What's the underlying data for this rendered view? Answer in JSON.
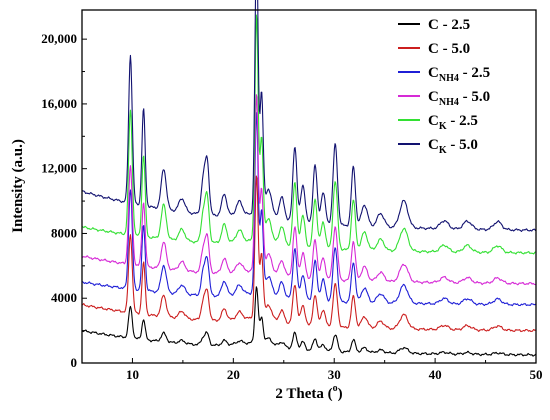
{
  "chart_data": {
    "type": "line",
    "title": "",
    "xlabel": "2 Theta (",
    "xlabel_degree": "o",
    "xlabel_close": ")",
    "ylabel": "Intensity (a.u.)",
    "xlim": [
      5,
      50
    ],
    "ylim": [
      0,
      21800
    ],
    "xticks": [
      10,
      20,
      30,
      40,
      50
    ],
    "yticks": [
      0,
      4000,
      8000,
      12000,
      16000,
      20000
    ],
    "ytick_labels": [
      "0",
      "4000",
      "8000",
      "12,000",
      "16,000",
      "20,000"
    ],
    "grid": false,
    "legend_position": "top-right",
    "peaks": [
      {
        "x": 9.8,
        "w": 0.18,
        "rel": 0.55
      },
      {
        "x": 11.1,
        "w": 0.16,
        "rel": 0.36
      },
      {
        "x": 13.1,
        "w": 0.25,
        "rel": 0.15
      },
      {
        "x": 14.9,
        "w": 0.3,
        "rel": 0.05
      },
      {
        "x": 17.0,
        "w": 0.2,
        "rel": 0.12
      },
      {
        "x": 17.4,
        "w": 0.2,
        "rel": 0.2
      },
      {
        "x": 19.1,
        "w": 0.25,
        "rel": 0.08
      },
      {
        "x": 20.6,
        "w": 0.3,
        "rel": 0.05
      },
      {
        "x": 22.3,
        "w": 0.16,
        "rel": 1.0
      },
      {
        "x": 22.8,
        "w": 0.16,
        "rel": 0.45
      },
      {
        "x": 23.5,
        "w": 0.3,
        "rel": 0.1
      },
      {
        "x": 24.8,
        "w": 0.25,
        "rel": 0.08
      },
      {
        "x": 26.1,
        "w": 0.2,
        "rel": 0.28
      },
      {
        "x": 26.9,
        "w": 0.22,
        "rel": 0.14
      },
      {
        "x": 28.1,
        "w": 0.2,
        "rel": 0.22
      },
      {
        "x": 28.9,
        "w": 0.22,
        "rel": 0.12
      },
      {
        "x": 30.1,
        "w": 0.22,
        "rel": 0.3
      },
      {
        "x": 31.9,
        "w": 0.2,
        "rel": 0.22
      },
      {
        "x": 33.0,
        "w": 0.3,
        "rel": 0.08
      },
      {
        "x": 34.6,
        "w": 0.35,
        "rel": 0.05
      },
      {
        "x": 36.9,
        "w": 0.4,
        "rel": 0.1
      },
      {
        "x": 40.9,
        "w": 0.4,
        "rel": 0.03
      },
      {
        "x": 43.2,
        "w": 0.4,
        "rel": 0.03
      },
      {
        "x": 46.2,
        "w": 0.4,
        "rel": 0.03
      }
    ],
    "series": [
      {
        "name": "C - 2.5",
        "name_main": "C",
        "name_sub": "",
        "name_tail": " - 2.5",
        "color": "#000000",
        "baseline": [
          2000,
          500
        ],
        "peak_height": 3500
      },
      {
        "name": "C - 5.0",
        "name_main": "C",
        "name_sub": "",
        "name_tail": " - 5.0",
        "color": "#cc1f1f",
        "baseline": [
          3600,
          2000
        ],
        "peak_height": 8800
      },
      {
        "name": "CNH4 - 2.5",
        "name_main": "C",
        "name_sub": "NH4",
        "name_tail": " - 2.5",
        "color": "#1f1fd6",
        "baseline": [
          5000,
          3600
        ],
        "peak_height": 11200
      },
      {
        "name": "CNH4 - 5.0",
        "name_main": "C",
        "name_sub": "NH4",
        "name_tail": " - 5.0",
        "color": "#d62ad6",
        "baseline": [
          6600,
          4900
        ],
        "peak_height": 11000
      },
      {
        "name": "CK - 2.5",
        "name_main": "C",
        "name_sub": "K",
        "name_tail": " - 2.5",
        "color": "#33e033",
        "baseline": [
          8400,
          6800
        ],
        "peak_height": 14000
      },
      {
        "name": "CK - 5.0",
        "name_main": "C",
        "name_sub": "K",
        "name_tail": " - 5.0",
        "color": "#121270",
        "baseline": [
          10600,
          8200
        ],
        "peak_height": 16600
      }
    ]
  }
}
